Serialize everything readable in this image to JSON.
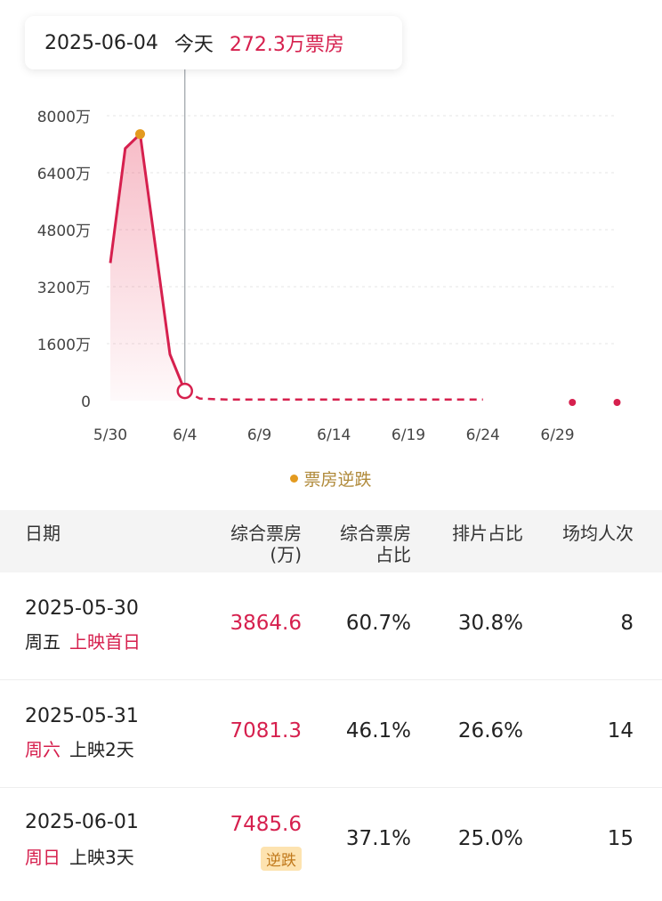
{
  "tooltip": {
    "date": "2025-06-04",
    "day": "今天",
    "value": "272.3万票房"
  },
  "chart_data": {
    "type": "area",
    "y_tick_labels": [
      "8000万",
      "6400万",
      "4800万",
      "3200万",
      "1600万",
      "0"
    ],
    "y_ticks": [
      8000,
      6400,
      4800,
      3200,
      1600,
      0
    ],
    "ylim": [
      0,
      8000
    ],
    "x_tick_labels": [
      "5/30",
      "6/4",
      "6/9",
      "6/14",
      "6/19",
      "6/24",
      "6/29"
    ],
    "x_start_label": "5/30",
    "series": [
      {
        "name": "综合票房(万)",
        "x": [
          0,
          1,
          2,
          3,
          4,
          5,
          6,
          7,
          8
        ],
        "values": [
          3864.6,
          7081.3,
          7485.6,
          4400,
          1300,
          272.3,
          60,
          40,
          30
        ],
        "dashed_after_index": 5,
        "dashed_until_x": 25
      }
    ],
    "highlight_points": [
      {
        "x": 2,
        "value": 7485.6,
        "label": "票房逆跌",
        "color": "#e39a1f"
      },
      {
        "x": 5,
        "value": 272.3,
        "label": "selected",
        "color": "#d6204e"
      }
    ],
    "tail_points": [
      {
        "x": 31,
        "value": 0
      },
      {
        "x": 34,
        "value": 0
      }
    ],
    "cursor_x": 5,
    "grid": true,
    "legend": [
      {
        "label": "票房逆跌",
        "color": "#e39a1f"
      }
    ],
    "legend_position": "bottom-center",
    "line_color": "#d6204e"
  },
  "table": {
    "headers": {
      "date": "日期",
      "box_line1": "综合票房",
      "box_line2": "(万)",
      "share_line1": "综合票房",
      "share_line2": "占比",
      "sched": "排片占比",
      "avg": "场均人次"
    },
    "rows": [
      {
        "date": "2025-05-30",
        "weekday": "周五",
        "weekday_red": false,
        "release": "上映首日",
        "release_red": true,
        "box": "3864.6",
        "share": "60.7%",
        "sched": "30.8%",
        "avg": "8",
        "badge": ""
      },
      {
        "date": "2025-05-31",
        "weekday": "周六",
        "weekday_red": true,
        "release": "上映2天",
        "release_red": false,
        "box": "7081.3",
        "share": "46.1%",
        "sched": "26.6%",
        "avg": "14",
        "badge": ""
      },
      {
        "date": "2025-06-01",
        "weekday": "周日",
        "weekday_red": true,
        "release": "上映3天",
        "release_red": false,
        "box": "7485.6",
        "share": "37.1%",
        "sched": "25.0%",
        "avg": "15",
        "badge": "逆跌"
      }
    ]
  }
}
